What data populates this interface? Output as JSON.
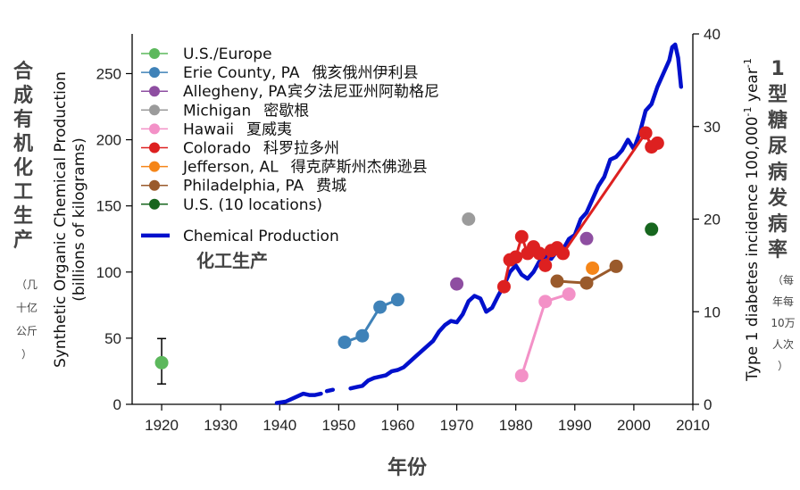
{
  "chart_data": {
    "type": "line",
    "x_axis": {
      "min": 1915,
      "max": 2010,
      "ticks": [
        1920,
        1930,
        1940,
        1950,
        1960,
        1970,
        1980,
        1990,
        2000,
        2010
      ],
      "label_cn": "年份"
    },
    "y_left": {
      "min": 0,
      "max": 280,
      "ticks": [
        0,
        50,
        100,
        150,
        200,
        250
      ],
      "label_line1": "Synthetic Organic Chemical Production",
      "label_line2": "(billions of kilograms)",
      "label_cn_big": "合成有机化工生产",
      "label_cn_small": [
        "（几",
        "十亿",
        "公斤",
        "）"
      ]
    },
    "y_right": {
      "min": 0,
      "max": 40,
      "ticks": [
        0,
        10,
        20,
        30,
        40
      ],
      "label_main": "Type 1 diabetes incidence 100,000",
      "label_sup1": "-1",
      "label_mid": " year",
      "label_sup2": "-1",
      "label_cn_big": "1型糖尿病发病率",
      "label_cn_small": [
        "（每",
        "年每",
        "10万",
        "人次",
        "）"
      ]
    },
    "chemical_label_cn": "化工生产",
    "chemical_production": {
      "name": "Chemical Production",
      "color": "#0010cc",
      "segments": [
        [
          [
            1939.5,
            1
          ],
          [
            1941,
            2
          ],
          [
            1942,
            4
          ],
          [
            1943,
            6
          ],
          [
            1944,
            8
          ],
          [
            1945,
            7
          ],
          [
            1946,
            7
          ],
          [
            1947,
            8
          ]
        ],
        [
          [
            1948,
            10
          ],
          [
            1949,
            11
          ]
        ],
        [
          [
            1952,
            12
          ],
          [
            1953,
            13
          ],
          [
            1954,
            14
          ],
          [
            1955,
            18
          ],
          [
            1956,
            20
          ],
          [
            1957,
            21
          ],
          [
            1958,
            22
          ],
          [
            1959,
            25
          ],
          [
            1960,
            26
          ],
          [
            1961,
            28
          ],
          [
            1962,
            32
          ],
          [
            1963,
            36
          ],
          [
            1964,
            40
          ],
          [
            1965,
            44
          ],
          [
            1966,
            48
          ],
          [
            1967,
            55
          ],
          [
            1968,
            60
          ],
          [
            1969,
            63
          ],
          [
            1970,
            62
          ],
          [
            1971,
            68
          ],
          [
            1972,
            78
          ],
          [
            1973,
            82
          ],
          [
            1974,
            80
          ],
          [
            1975,
            70
          ],
          [
            1976,
            73
          ],
          [
            1977,
            82
          ],
          [
            1978,
            90
          ],
          [
            1979,
            100
          ],
          [
            1980,
            105
          ],
          [
            1981,
            98
          ],
          [
            1982,
            95
          ],
          [
            1983,
            100
          ],
          [
            1984,
            108
          ],
          [
            1985,
            112
          ],
          [
            1986,
            110
          ],
          [
            1987,
            116
          ],
          [
            1988,
            117
          ],
          [
            1989,
            125
          ],
          [
            1990,
            128
          ],
          [
            1991,
            140
          ],
          [
            1992,
            145
          ],
          [
            1993,
            155
          ],
          [
            1994,
            165
          ],
          [
            1995,
            172
          ],
          [
            1996,
            185
          ],
          [
            1997,
            187
          ],
          [
            1998,
            192
          ],
          [
            1999,
            200
          ],
          [
            2000,
            193
          ],
          [
            2001,
            205
          ],
          [
            2002,
            222
          ],
          [
            2003,
            227
          ],
          [
            2004,
            240
          ],
          [
            2005,
            250
          ],
          [
            2006,
            260
          ],
          [
            2006.5,
            270
          ],
          [
            2007,
            272
          ],
          [
            2007.5,
            262
          ],
          [
            2008,
            240
          ]
        ]
      ]
    },
    "series": [
      {
        "name": "U.S./Europe",
        "cn": "",
        "color": "#5cb85c",
        "points": [
          [
            1920,
            4.5
          ]
        ],
        "errorbar": {
          "x": 1920,
          "low": 2.2,
          "high": 7.1
        }
      },
      {
        "name": "Erie County, PA",
        "cn": "俄亥俄州伊利县",
        "color": "#3f82b8",
        "points": [
          [
            1951,
            6.7
          ],
          [
            1954,
            7.4
          ],
          [
            1957,
            10.5
          ],
          [
            1960,
            11.3
          ]
        ]
      },
      {
        "name": "Allegheny, PA",
        "cn": "宾夕法尼亚州阿勒格尼",
        "color": "#8e4ea1",
        "points": [
          [
            1970,
            13.0
          ],
          [
            1992,
            17.9
          ]
        ]
      },
      {
        "name": "Michigan",
        "cn": "密歇根",
        "color": "#9b9b9b",
        "points": [
          [
            1972,
            20.0
          ]
        ]
      },
      {
        "name": "Hawaii",
        "cn": "夏威夷",
        "color": "#f391c7",
        "points": [
          [
            1981,
            3.1
          ],
          [
            1985,
            11.1
          ],
          [
            1989,
            11.9
          ]
        ]
      },
      {
        "name": "Colorado",
        "cn": "科罗拉多州",
        "color": "#dd2020",
        "points": [
          [
            1978,
            12.7
          ],
          [
            1979,
            15.6
          ],
          [
            1980,
            15.9
          ],
          [
            1981,
            18.1
          ],
          [
            1982,
            16.3
          ],
          [
            1983,
            17.0
          ],
          [
            1984,
            16.3
          ],
          [
            1985,
            15.0
          ],
          [
            1986,
            16.6
          ],
          [
            1987,
            16.9
          ],
          [
            1988,
            16.3
          ],
          [
            2002,
            29.3
          ],
          [
            2003,
            27.8
          ],
          [
            2004,
            28.2
          ]
        ]
      },
      {
        "name": "Jefferson, AL",
        "cn": "得克萨斯州杰佛逊县",
        "color": "#f58518",
        "points": [
          [
            1993,
            14.7
          ]
        ]
      },
      {
        "name": "Philadelphia, PA",
        "cn": "费城",
        "color": "#9a5a2b",
        "points": [
          [
            1987,
            13.3
          ],
          [
            1992,
            13.1
          ],
          [
            1997,
            14.9
          ]
        ]
      },
      {
        "name": "U.S. (10 locations)",
        "cn": "",
        "color": "#17661e",
        "points": [
          [
            2003,
            18.9
          ]
        ]
      }
    ],
    "colorado_trend": [
      [
        1988,
        16.3
      ],
      [
        2002,
        29.3
      ]
    ]
  }
}
